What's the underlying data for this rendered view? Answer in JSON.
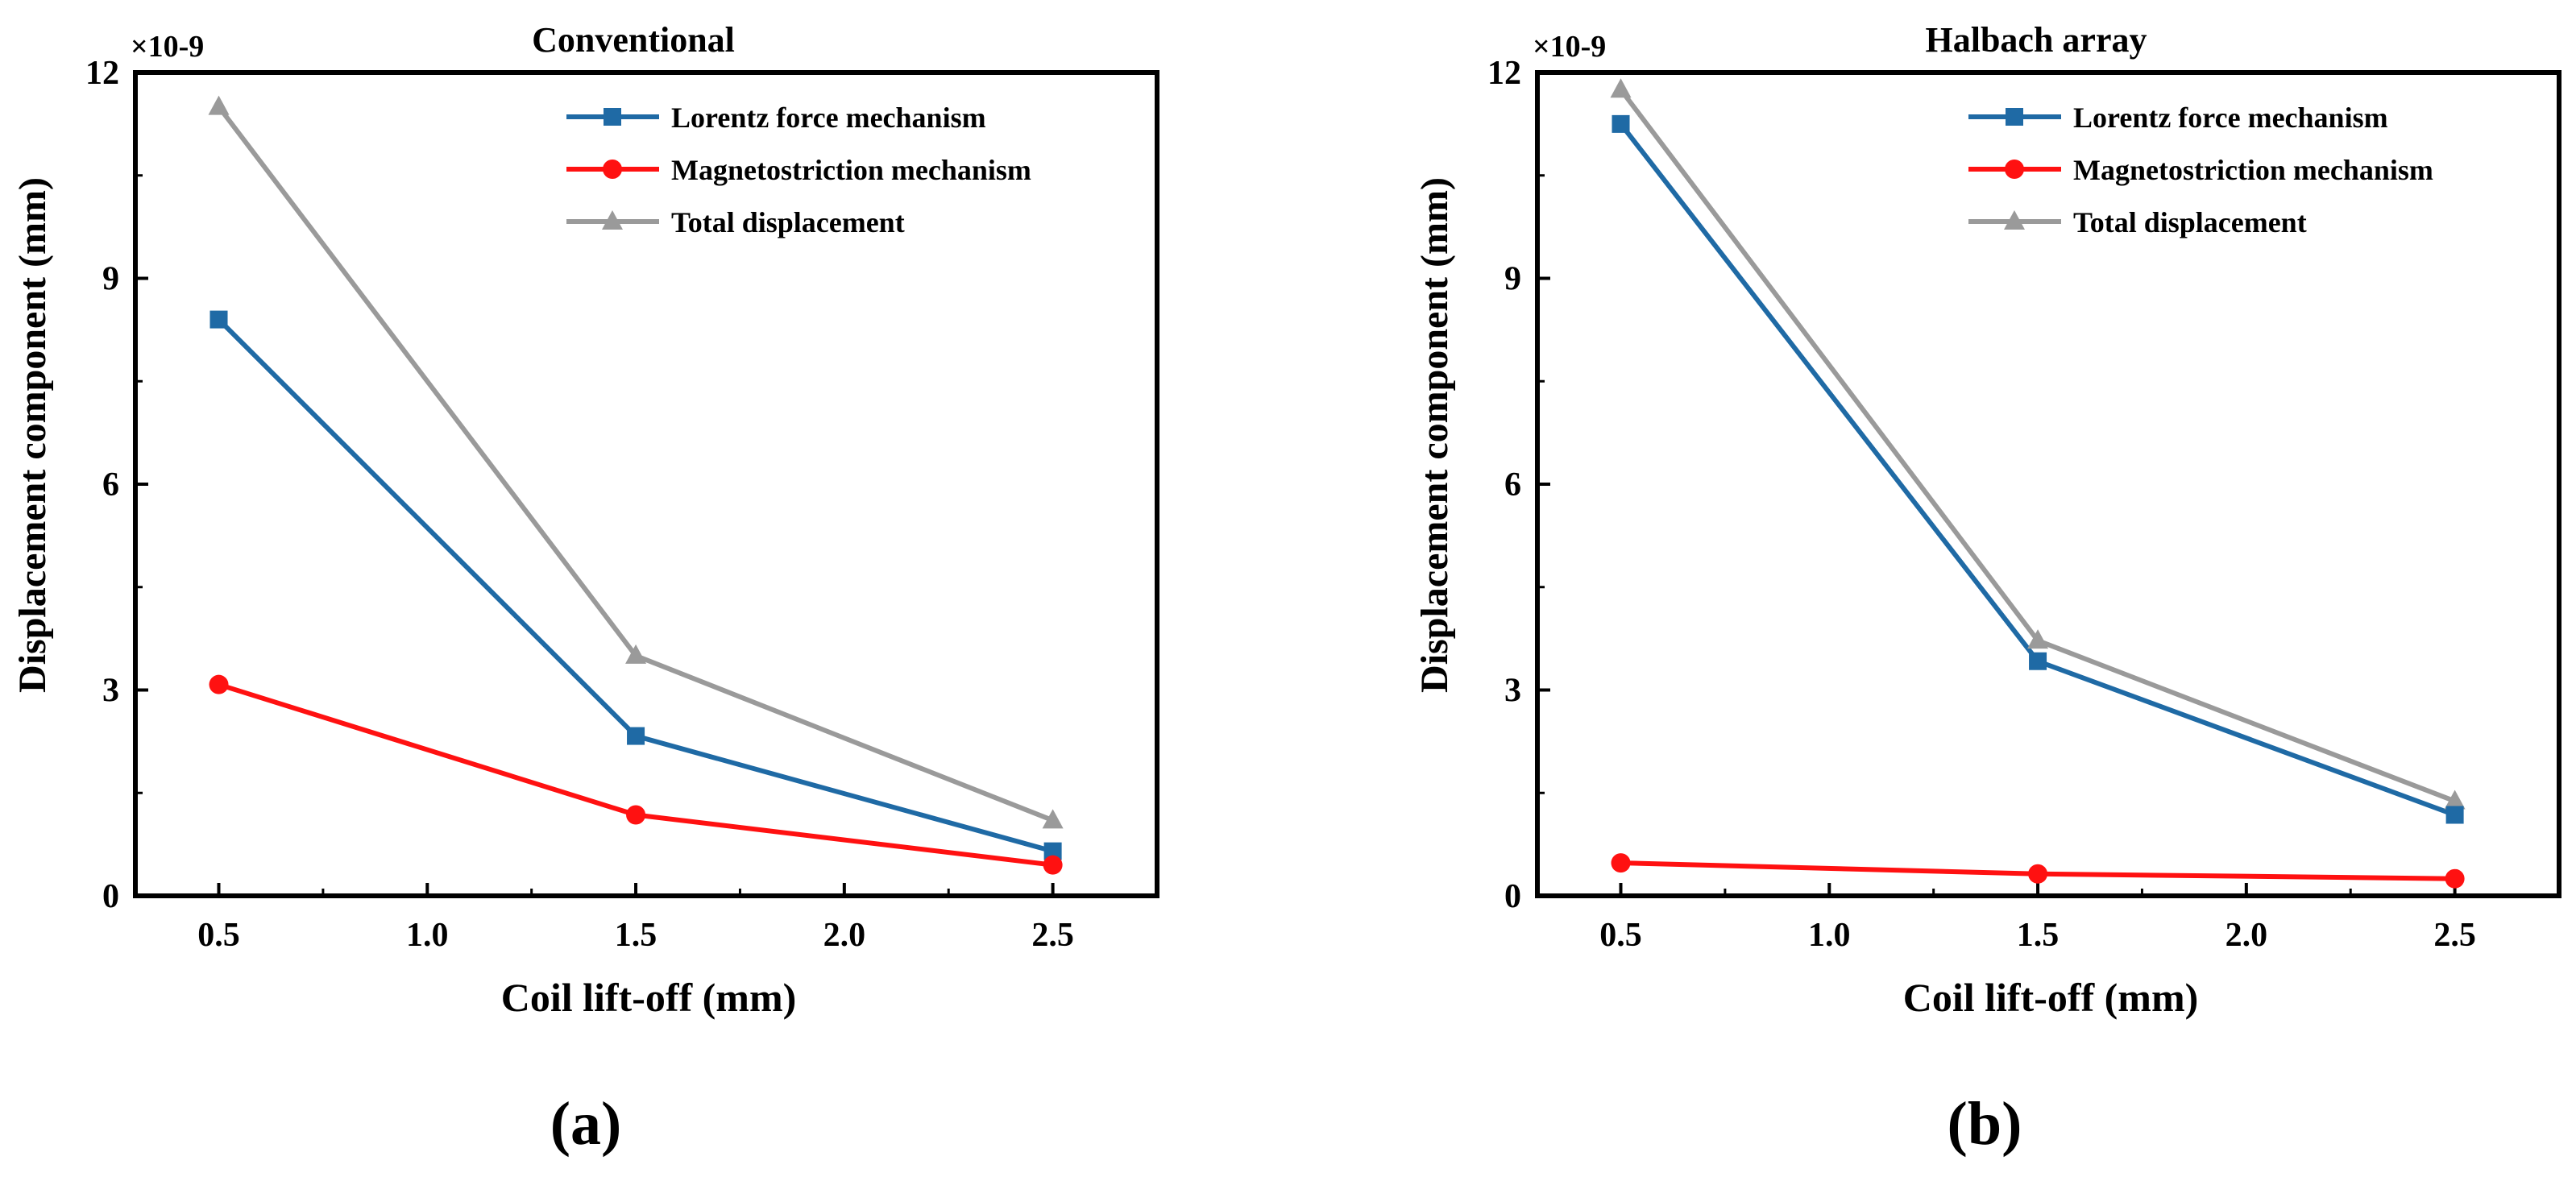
{
  "chart_data": [
    {
      "type": "line",
      "title": "Conventional",
      "panel_label": "(a)",
      "xlabel": "Coil lift-off (mm)",
      "ylabel": "Displacement component (mm)",
      "y_multiplier": "×10-9",
      "xlim": [
        0.3,
        2.75
      ],
      "ylim": [
        0,
        12
      ],
      "x_ticks": [
        0.5,
        1.0,
        1.5,
        2.0,
        2.5
      ],
      "x_tick_labels": [
        "0.5",
        "1.0",
        "1.5",
        "2.0",
        "2.5"
      ],
      "y_ticks": [
        0,
        3,
        6,
        9,
        12
      ],
      "y_tick_labels": [
        "0",
        "3",
        "6",
        "9",
        "12"
      ],
      "legend_position": "top-right",
      "x": [
        0.5,
        1.5,
        2.5
      ],
      "series": [
        {
          "name": "Lorentz force mechanism",
          "values": [
            8.4,
            2.33,
            0.65
          ],
          "color": "#1f6aa5",
          "marker": "square"
        },
        {
          "name": "Magnetostriction mechanism",
          "values": [
            3.08,
            1.18,
            0.45
          ],
          "color": "#ff1111",
          "marker": "circle"
        },
        {
          "name": "Total displacement",
          "values": [
            11.5,
            3.5,
            1.1
          ],
          "color": "#9a9a9a",
          "marker": "triangle"
        }
      ]
    },
    {
      "type": "line",
      "title": "Halbach array",
      "panel_label": "(b)",
      "xlabel": "Coil lift-off (mm)",
      "ylabel": "Displacement component (mm)",
      "y_multiplier": "×10-9",
      "xlim": [
        0.3,
        2.75
      ],
      "ylim": [
        0,
        12
      ],
      "x_ticks": [
        0.5,
        1.0,
        1.5,
        2.0,
        2.5
      ],
      "x_tick_labels": [
        "0.5",
        "1.0",
        "1.5",
        "2.0",
        "2.5"
      ],
      "y_ticks": [
        0,
        3,
        6,
        9,
        12
      ],
      "y_tick_labels": [
        "0",
        "3",
        "6",
        "9",
        "12"
      ],
      "legend_position": "top-right",
      "x": [
        0.5,
        1.5,
        2.5
      ],
      "series": [
        {
          "name": "Lorentz force mechanism",
          "values": [
            11.25,
            3.42,
            1.18
          ],
          "color": "#1f6aa5",
          "marker": "square"
        },
        {
          "name": "Magnetostriction mechanism",
          "values": [
            0.48,
            0.32,
            0.25
          ],
          "color": "#ff1111",
          "marker": "circle"
        },
        {
          "name": "Total displacement",
          "values": [
            11.75,
            3.72,
            1.38
          ],
          "color": "#9a9a9a",
          "marker": "triangle"
        }
      ]
    }
  ]
}
